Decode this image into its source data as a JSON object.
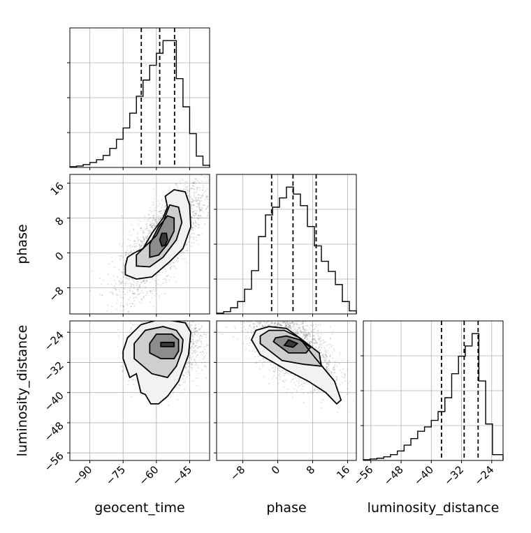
{
  "chart_data": {
    "type": "corner",
    "parameters": [
      "geocent_time",
      "phase",
      "luminosity_distance"
    ],
    "axes": {
      "geocent_time": {
        "label": "geocent_time",
        "range": [
          -99,
          -36
        ],
        "ticks": [
          -90,
          -75,
          -60,
          -45
        ],
        "tick_labels": [
          "−90",
          "−75",
          "−60",
          "−45"
        ]
      },
      "phase": {
        "label": "phase",
        "range": [
          -14,
          18
        ],
        "ticks": [
          -8,
          0,
          8,
          16
        ],
        "tick_labels": [
          "−8",
          "0",
          "8",
          "16"
        ]
      },
      "luminosity_distance": {
        "label": "luminosity_distance",
        "range": [
          -58,
          -21
        ],
        "ticks": [
          -56,
          -48,
          -40,
          -32,
          -24
        ],
        "tick_labels": [
          "−56",
          "−48",
          "−40",
          "−32",
          "−24"
        ]
      }
    },
    "marginals": [
      {
        "parameter": "geocent_time",
        "bin_edges": [
          -99,
          -96,
          -93,
          -90,
          -87,
          -84,
          -81,
          -78,
          -75,
          -72,
          -69,
          -66,
          -63,
          -60,
          -57,
          -54,
          -51,
          -48,
          -45,
          -42,
          -39,
          -36
        ],
        "counts": [
          1,
          2,
          4,
          7,
          11,
          17,
          27,
          40,
          56,
          77,
          101,
          124,
          145,
          162,
          180,
          180,
          126,
          86,
          48,
          16,
          3
        ],
        "quantiles": [
          -66.8,
          -58.5,
          -51.8
        ]
      },
      {
        "parameter": "phase",
        "bin_edges": [
          -14,
          -12.4,
          -10.8,
          -9.2,
          -7.6,
          -6,
          -4.4,
          -2.8,
          -1.2,
          0.4,
          2,
          3.6,
          5.2,
          6.8,
          8.4,
          10,
          11.6,
          13.2,
          14.8,
          16.4,
          18
        ],
        "counts": [
          1,
          3,
          8,
          16,
          32,
          56,
          100,
          128,
          138,
          150,
          164,
          155,
          140,
          113,
          88,
          68,
          55,
          38,
          16,
          4
        ],
        "quantiles": [
          -1.4,
          3.5,
          8.8
        ]
      },
      {
        "parameter": "luminosity_distance",
        "bin_edges": [
          -58,
          -56.2,
          -54.4,
          -52.6,
          -50.8,
          -49,
          -47.2,
          -45.4,
          -43.6,
          -41.8,
          -40,
          -38.2,
          -36.4,
          -34.6,
          -32.8,
          -31,
          -29.2,
          -27.4,
          -25.6,
          -23.8,
          -22,
          -21
        ],
        "counts": [
          1,
          2,
          3,
          5,
          8,
          13,
          21,
          30,
          40,
          46,
          55,
          67,
          86,
          119,
          143,
          157,
          174,
          109,
          50,
          8,
          8
        ],
        "quantiles": [
          -37.3,
          -31.3,
          -27.6
        ]
      }
    ],
    "pairs": [
      {
        "x": "geocent_time",
        "y": "phase",
        "center": [
          -57,
          3
        ],
        "spread": [
          9,
          6
        ],
        "correlation": 0.75,
        "contours": [
          [
            [
              -57.5,
              1.5
            ],
            [
              -56,
              1.8
            ],
            [
              -55,
              3
            ],
            [
              -55.5,
              4.5
            ],
            [
              -57.5,
              4.5
            ],
            [
              -58.5,
              3
            ]
          ],
          [
            [
              -63,
              -1
            ],
            [
              -59,
              -0.5
            ],
            [
              -55,
              2
            ],
            [
              -52,
              5
            ],
            [
              -52,
              8
            ],
            [
              -55,
              8.5
            ],
            [
              -59,
              6
            ],
            [
              -63,
              2
            ]
          ],
          [
            [
              -69,
              -3
            ],
            [
              -63,
              -3.2
            ],
            [
              -57,
              -1
            ],
            [
              -51,
              3
            ],
            [
              -48.5,
              7
            ],
            [
              -50,
              10.5
            ],
            [
              -54,
              11
            ],
            [
              -57,
              7
            ],
            [
              -60,
              4
            ],
            [
              -65,
              1.5
            ],
            [
              -69,
              -0.5
            ]
          ],
          [
            [
              -74,
              -5
            ],
            [
              -69,
              -6
            ],
            [
              -62,
              -5.5
            ],
            [
              -54,
              -2
            ],
            [
              -48,
              1
            ],
            [
              -44.5,
              6
            ],
            [
              -45,
              11
            ],
            [
              -47,
              14
            ],
            [
              -52,
              14.5
            ],
            [
              -56,
              13
            ],
            [
              -55,
              10.5
            ],
            [
              -57,
              8
            ],
            [
              -62,
              4.5
            ],
            [
              -66,
              1
            ],
            [
              -70,
              0
            ],
            [
              -73,
              -1
            ],
            [
              -74,
              -3
            ]
          ]
        ]
      },
      {
        "x": "geocent_time",
        "y": "luminosity_distance",
        "center": [
          -55,
          -27.5
        ],
        "spread": [
          7,
          4.5
        ],
        "correlation": 0.1,
        "contours": [
          [
            [
              -58,
              -27.8
            ],
            [
              -52,
              -27.8
            ],
            [
              -52,
              -26.7
            ],
            [
              -58,
              -26.7
            ]
          ],
          [
            [
              -63,
              -29.5
            ],
            [
              -58,
              -31
            ],
            [
              -52,
              -31
            ],
            [
              -50,
              -29
            ],
            [
              -50,
              -26
            ],
            [
              -53,
              -24.5
            ],
            [
              -60,
              -24.5
            ],
            [
              -63,
              -27
            ]
          ],
          [
            [
              -70,
              -31
            ],
            [
              -62,
              -35
            ],
            [
              -55,
              -36
            ],
            [
              -51,
              -33
            ],
            [
              -48.5,
              -29
            ],
            [
              -48,
              -26
            ],
            [
              -51,
              -23.5
            ],
            [
              -57,
              -22.5
            ],
            [
              -65,
              -23.5
            ],
            [
              -70,
              -27
            ]
          ],
          [
            [
              -75,
              -31
            ],
            [
              -72,
              -36
            ],
            [
              -69,
              -35
            ],
            [
              -67,
              -40
            ],
            [
              -65,
              -40.5
            ],
            [
              -62.5,
              -43
            ],
            [
              -59,
              -43
            ],
            [
              -55,
              -41
            ],
            [
              -50,
              -37
            ],
            [
              -45.5,
              -30
            ],
            [
              -44.5,
              -24
            ],
            [
              -47,
              -21.5
            ],
            [
              -58,
              -20.5
            ],
            [
              -67,
              -22
            ],
            [
              -73,
              -25.5
            ],
            [
              -75,
              -29
            ]
          ]
        ]
      },
      {
        "x": "phase",
        "y": "luminosity_distance",
        "center": [
          3,
          -27.5
        ],
        "spread": [
          4.5,
          5
        ],
        "correlation": -0.55,
        "contours": [
          [
            [
              1.5,
              -27.5
            ],
            [
              3.5,
              -28
            ],
            [
              4.5,
              -27
            ],
            [
              2.5,
              -26
            ]
          ],
          [
            [
              -1,
              -26.5
            ],
            [
              2.5,
              -29.5
            ],
            [
              6.5,
              -29.5
            ],
            [
              7.5,
              -28
            ],
            [
              5,
              -26
            ],
            [
              2,
              -25
            ],
            [
              -0.5,
              -25.5
            ]
          ],
          [
            [
              -4,
              -27
            ],
            [
              1,
              -31.5
            ],
            [
              6,
              -32.5
            ],
            [
              10,
              -33
            ],
            [
              9.5,
              -29.5
            ],
            [
              5,
              -25.5
            ],
            [
              1.5,
              -23.5
            ],
            [
              -2,
              -23.5
            ],
            [
              -4,
              -25
            ]
          ],
          [
            [
              -6,
              -26
            ],
            [
              -4,
              -30
            ],
            [
              2,
              -34
            ],
            [
              7,
              -37
            ],
            [
              11,
              -40
            ],
            [
              13.5,
              -43
            ],
            [
              14.5,
              -42
            ],
            [
              13,
              -37
            ],
            [
              8,
              -30
            ],
            [
              5,
              -25.5
            ],
            [
              2,
              -23
            ],
            [
              -2,
              -22.5
            ],
            [
              -5,
              -23.5
            ]
          ]
        ]
      }
    ],
    "grid": true,
    "legend": "none"
  }
}
